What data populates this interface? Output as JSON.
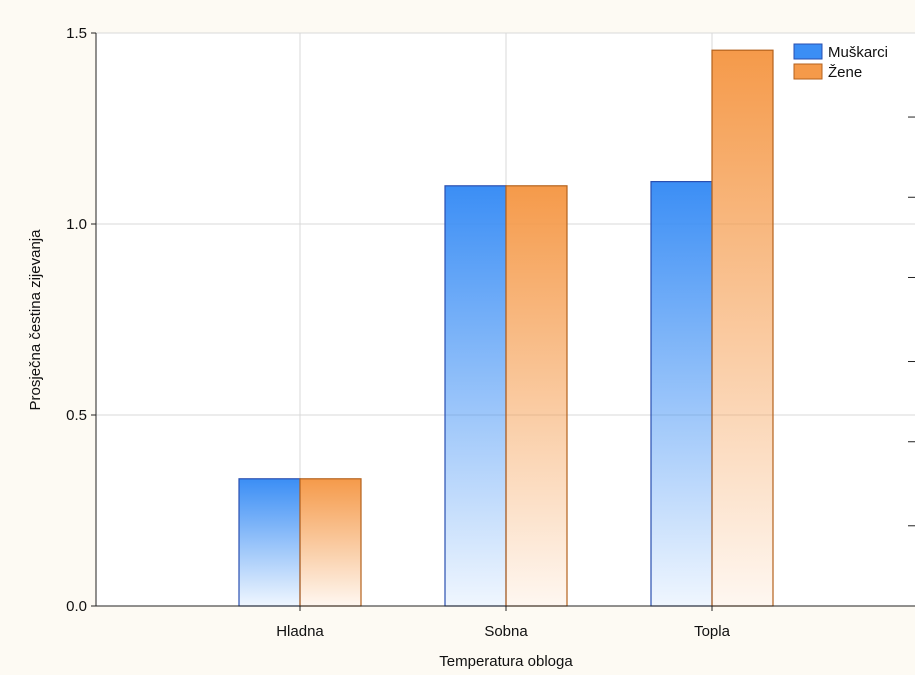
{
  "chart_data": {
    "type": "bar",
    "title": "",
    "xlabel": "Temperatura obloga",
    "ylabel": "Prosječna čestina zijevanja",
    "categories": [
      "Hladna",
      "Sobna",
      "Topla"
    ],
    "series": [
      {
        "name": "Muškarci",
        "values": [
          0.333,
          1.1,
          1.111
        ],
        "color": "#3b8ef5",
        "edge": "#2a4fb0"
      },
      {
        "name": "Žene",
        "values": [
          0.333,
          1.1,
          1.455
        ],
        "color": "#f59a4a",
        "edge": "#b5621c"
      }
    ],
    "ylim": [
      0,
      1.5
    ],
    "yticks": [
      {
        "value": 0,
        "label": "0.0"
      },
      {
        "value": 0.5,
        "label": "0.5"
      },
      {
        "value": 1.0,
        "label": "1.0"
      },
      {
        "value": 1.5,
        "label": "1.5"
      }
    ],
    "grid": true,
    "legend": "top-right"
  }
}
